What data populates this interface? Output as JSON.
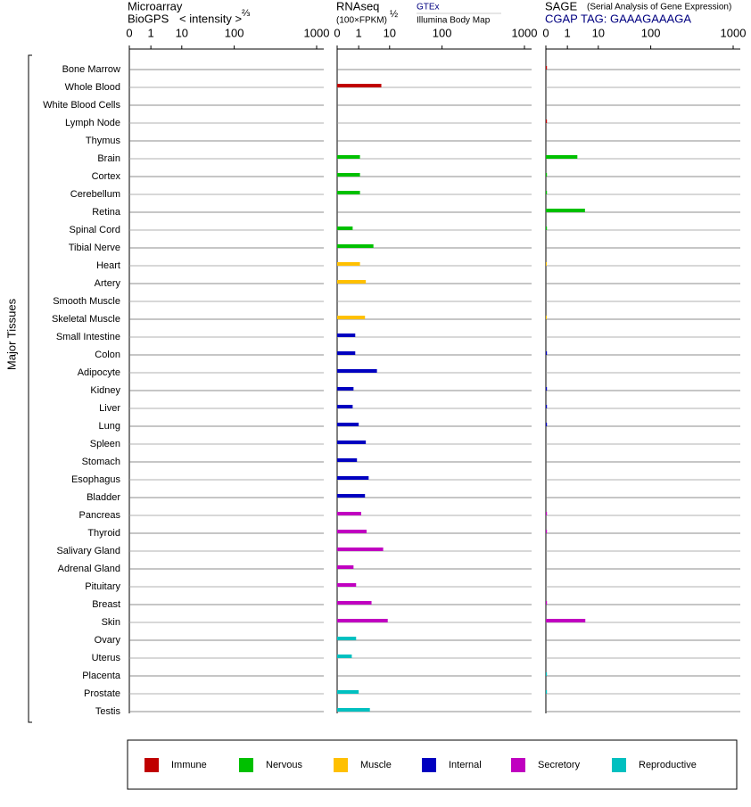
{
  "chart_data": {
    "type": "bar",
    "y_label": "Major Tissues",
    "categories": [
      "Bone Marrow",
      "Whole Blood",
      "White Blood Cells",
      "Lymph Node",
      "Thymus",
      "Brain",
      "Cortex",
      "Cerebellum",
      "Retina",
      "Spinal Cord",
      "Tibial Nerve",
      "Heart",
      "Artery",
      "Smooth Muscle",
      "Skeletal Muscle",
      "Small Intestine",
      "Colon",
      "Adipocyte",
      "Kidney",
      "Liver",
      "Lung",
      "Spleen",
      "Stomach",
      "Esophagus",
      "Bladder",
      "Pancreas",
      "Thyroid",
      "Salivary Gland",
      "Adrenal Gland",
      "Pituitary",
      "Breast",
      "Skin",
      "Ovary",
      "Uterus",
      "Placenta",
      "Prostate",
      "Testis"
    ],
    "category_colors": [
      "#c00000",
      "#c00000",
      "#c00000",
      "#c00000",
      "#c00000",
      "#00c000",
      "#00c000",
      "#00c000",
      "#00c000",
      "#00c000",
      "#00c000",
      "#ffc000",
      "#ffc000",
      "#ffc000",
      "#ffc000",
      "#0000c0",
      "#0000c0",
      "#0000c0",
      "#0000c0",
      "#0000c0",
      "#0000c0",
      "#0000c0",
      "#0000c0",
      "#0000c0",
      "#0000c0",
      "#c000c0",
      "#c000c0",
      "#c000c0",
      "#c000c0",
      "#c000c0",
      "#c000c0",
      "#c000c0",
      "#00c0c0",
      "#00c0c0",
      "#00c0c0",
      "#00c0c0",
      "#00c0c0"
    ],
    "legend": [
      {
        "name": "Immune",
        "color": "#c00000"
      },
      {
        "name": "Nervous",
        "color": "#00c000"
      },
      {
        "name": "Muscle",
        "color": "#ffc000"
      },
      {
        "name": "Internal",
        "color": "#0000c0"
      },
      {
        "name": "Secretory",
        "color": "#c000c0"
      },
      {
        "name": "Reproductive",
        "color": "#00c0c0"
      }
    ],
    "panels": [
      {
        "title": "Microarray",
        "subtitle": "BioGPS",
        "scale_label": "< intensity >",
        "scale_exponent": "⅔",
        "xlim": [
          0,
          1000
        ],
        "xticks": [
          0,
          1,
          10,
          100,
          1000
        ],
        "values": [
          null,
          null,
          null,
          null,
          null,
          null,
          null,
          null,
          null,
          null,
          null,
          null,
          null,
          null,
          null,
          null,
          null,
          null,
          null,
          null,
          null,
          null,
          null,
          null,
          null,
          null,
          null,
          null,
          null,
          null,
          null,
          null,
          null,
          null,
          null,
          null,
          null
        ]
      },
      {
        "title": "RNAseq",
        "scale_label": "(100×FPKM)",
        "scale_exponent": "½",
        "link": "GTEx",
        "source": "Illumina Body Map",
        "xlim": [
          0,
          1000
        ],
        "xticks": [
          0,
          1,
          10,
          100,
          1000
        ],
        "values": [
          null,
          5.4,
          null,
          null,
          null,
          1.1,
          1.1,
          1.1,
          null,
          0.72,
          3.0,
          1.1,
          1.7,
          null,
          1.6,
          0.84,
          0.84,
          3.9,
          0.76,
          0.72,
          1.0,
          1.7,
          0.92,
          2.1,
          1.6,
          1.2,
          1.8,
          6.2,
          0.76,
          0.88,
          2.6,
          8.7,
          0.88,
          0.68,
          null,
          1.0,
          2.3
        ]
      },
      {
        "title": "SAGE",
        "note": "(Serial Analysis of Gene Expression)",
        "subtitle": "CGAP TAG: GAAAGAAAGA",
        "xlim": [
          0,
          1000
        ],
        "xticks": [
          0,
          1,
          10,
          100,
          1000
        ],
        "values": [
          0.05,
          null,
          null,
          0.05,
          null,
          2.1,
          0.05,
          0.05,
          3.7,
          0.05,
          null,
          0.02,
          null,
          null,
          0.02,
          null,
          0.05,
          null,
          0.05,
          0.05,
          0.05,
          null,
          null,
          null,
          null,
          0.05,
          0.05,
          null,
          null,
          null,
          0.05,
          3.8,
          null,
          null,
          0.05,
          0.05,
          null
        ]
      }
    ]
  }
}
